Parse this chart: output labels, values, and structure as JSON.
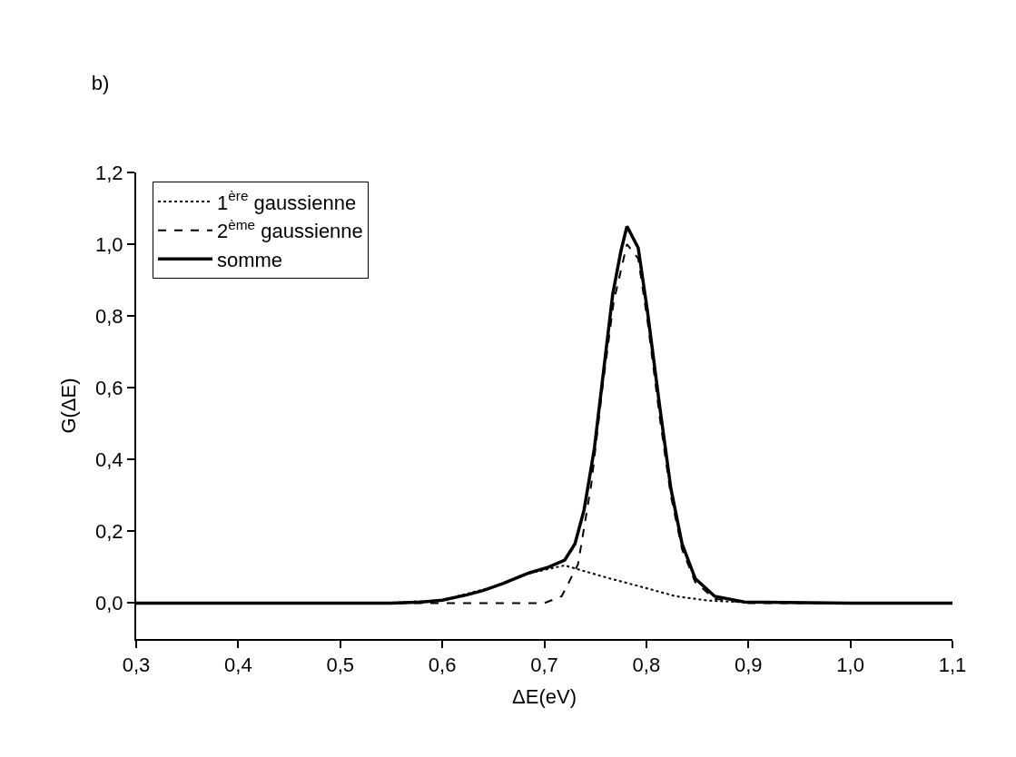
{
  "chart_data": {
    "type": "line",
    "title": "b)",
    "xlabel": "ΔE(eV)",
    "ylabel": "G(ΔE)",
    "xlim": [
      0.3,
      1.1
    ],
    "ylim": [
      -0.1,
      1.2
    ],
    "xticks": [
      {
        "value": 0.3,
        "label": "0,3"
      },
      {
        "value": 0.4,
        "label": "0,4"
      },
      {
        "value": 0.5,
        "label": "0,5"
      },
      {
        "value": 0.6,
        "label": "0,6"
      },
      {
        "value": 0.7,
        "label": "0,7"
      },
      {
        "value": 0.8,
        "label": "0,8"
      },
      {
        "value": 0.9,
        "label": "0,9"
      },
      {
        "value": 1.0,
        "label": "1,0"
      },
      {
        "value": 1.1,
        "label": "1,1"
      }
    ],
    "yticks": [
      {
        "value": 0.0,
        "label": "0,0"
      },
      {
        "value": 0.2,
        "label": "0,2"
      },
      {
        "value": 0.4,
        "label": "0,4"
      },
      {
        "value": 0.6,
        "label": "0,6"
      },
      {
        "value": 0.8,
        "label": "0,8"
      },
      {
        "value": 1.0,
        "label": "1,0"
      },
      {
        "value": 1.2,
        "label": "1,2"
      }
    ],
    "legend": "top left",
    "marker": "none",
    "series": [
      {
        "name": "1$^{ère}$ gaussienne",
        "color": "#000000",
        "line_style": "dotted",
        "x": [
          0.3,
          0.55,
          0.6,
          0.65,
          0.68,
          0.72,
          0.765,
          0.797,
          0.829,
          0.861,
          0.9,
          1.0,
          1.1
        ],
        "values": [
          0,
          0.001,
          0.008,
          0.045,
          0.08,
          0.105,
          0.068,
          0.044,
          0.019,
          0.007,
          0.002,
          0,
          0
        ]
      },
      {
        "name": "2$^{ème}$ gaussienne",
        "color": "#000000",
        "line_style": "dashed",
        "x": [
          0.3,
          0.6,
          0.7,
          0.717,
          0.733,
          0.746,
          0.757,
          0.768,
          0.781,
          0.792,
          0.801,
          0.813,
          0.824,
          0.835,
          0.848,
          0.867,
          0.9,
          1.0,
          1.1
        ],
        "values": [
          0,
          0,
          0,
          0.019,
          0.108,
          0.33,
          0.6,
          0.84,
          1.0,
          0.96,
          0.79,
          0.52,
          0.3,
          0.15,
          0.058,
          0.012,
          0,
          0,
          0
        ]
      },
      {
        "name": "somme",
        "color": "#000000",
        "line_style": "solid",
        "x": [
          0.3,
          0.55,
          0.58,
          0.6,
          0.624,
          0.64,
          0.66,
          0.685,
          0.704,
          0.72,
          0.73,
          0.739,
          0.749,
          0.758,
          0.767,
          0.775,
          0.781,
          0.792,
          0.801,
          0.813,
          0.824,
          0.835,
          0.848,
          0.867,
          0.896,
          1.0,
          1.1
        ],
        "values": [
          0,
          0,
          0.003,
          0.008,
          0.023,
          0.035,
          0.055,
          0.084,
          0.1,
          0.12,
          0.165,
          0.26,
          0.43,
          0.645,
          0.86,
          0.98,
          1.05,
          0.99,
          0.815,
          0.55,
          0.32,
          0.165,
          0.068,
          0.019,
          0.003,
          0,
          0
        ]
      }
    ]
  }
}
